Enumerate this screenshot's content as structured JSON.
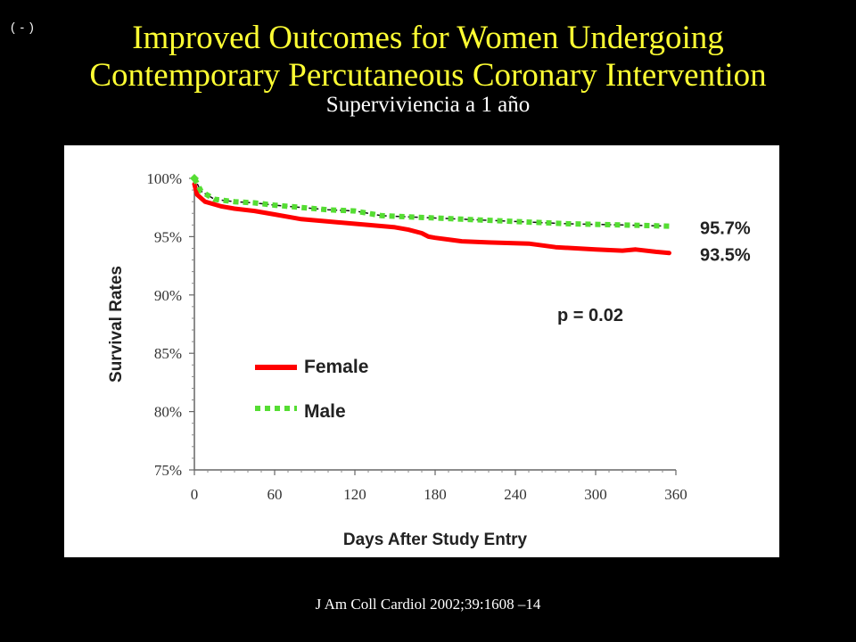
{
  "slide": {
    "corner_mark": "( - )",
    "title_line1": "Improved Outcomes for Women Undergoing",
    "title_line2": "Contemporary Percutaneous Coronary Intervention",
    "subtitle": "Superviviencia a 1 año",
    "citation": "J Am Coll Cardiol 2002;39:1608 –14"
  },
  "chart_data": {
    "type": "line",
    "xlabel": "Days After Study Entry",
    "ylabel": "Survival Rates",
    "xlim": [
      0,
      360
    ],
    "ylim": [
      75,
      100
    ],
    "x_ticks": [
      0,
      60,
      120,
      180,
      240,
      300,
      360
    ],
    "y_ticks": [
      75,
      80,
      85,
      90,
      95,
      100
    ],
    "y_tick_labels": [
      "75%",
      "80%",
      "85%",
      "90%",
      "95%",
      "100%"
    ],
    "grid": false,
    "legend_position": "center-left",
    "annotation": "p = 0.02",
    "series": [
      {
        "name": "Female",
        "color": "#ff0000",
        "style": "solid",
        "end_label": "93.5%",
        "x": [
          0,
          2,
          8,
          20,
          30,
          45,
          60,
          80,
          100,
          130,
          150,
          160,
          170,
          175,
          180,
          200,
          220,
          250,
          270,
          300,
          320,
          330,
          345,
          355
        ],
        "y": [
          99.5,
          98.6,
          98.0,
          97.6,
          97.4,
          97.2,
          96.9,
          96.5,
          96.3,
          96.0,
          95.8,
          95.6,
          95.3,
          95.0,
          94.9,
          94.6,
          94.5,
          94.4,
          94.1,
          93.9,
          93.8,
          93.9,
          93.7,
          93.6
        ]
      },
      {
        "name": "Male",
        "color": "#55dd33",
        "style": "dotted",
        "end_label": "95.7%",
        "x": [
          0,
          5,
          15,
          30,
          45,
          60,
          80,
          100,
          120,
          140,
          160,
          180,
          200,
          240,
          280,
          320,
          355
        ],
        "y": [
          100,
          98.9,
          98.2,
          98.0,
          97.9,
          97.7,
          97.5,
          97.3,
          97.2,
          96.8,
          96.7,
          96.6,
          96.5,
          96.3,
          96.1,
          96.0,
          95.9
        ]
      }
    ]
  }
}
